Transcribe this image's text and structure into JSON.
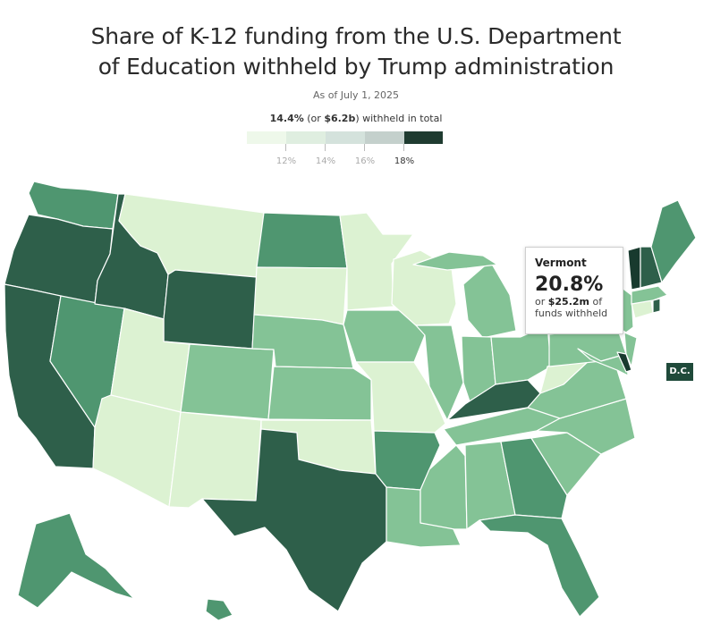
{
  "title_line1": "Share of K-12 funding from the U.S. Department",
  "title_line2": "of Education withheld by Trump administration",
  "subtitle": "As of July 1, 2025",
  "total": {
    "pct": "14.4%",
    "prefix": "(or ",
    "amount": "$6.2b",
    "suffix": ") withheld in total"
  },
  "legend": {
    "labels": [
      "12%",
      "14%",
      "16%",
      "18%"
    ],
    "colors": [
      "#eef8ea",
      "#dfeee0",
      "#d4e2dc",
      "#c4d0cc",
      "#1f3b30"
    ]
  },
  "tooltip": {
    "state": "Vermont",
    "pct": "20.8%",
    "line1_prefix": "or ",
    "line1_amount": "$25.2m",
    "line1_suffix": " of",
    "line2": "funds withheld"
  },
  "dc_label": "D.C.",
  "scale_colors": {
    "c1": "#dcf2d2",
    "c2": "#84c396",
    "c3": "#4f9670",
    "c4": "#2e5f4a",
    "c5": "#183a2e"
  }
}
